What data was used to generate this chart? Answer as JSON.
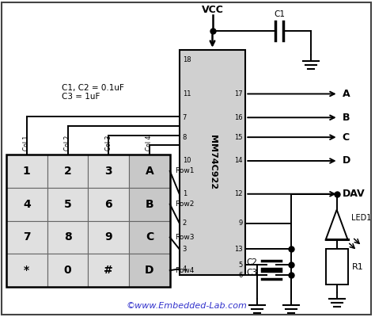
{
  "bg_color": "#ffffff",
  "ic_color": "#d0d0d0",
  "ic_label": "MM74C922",
  "output_labels": [
    "A",
    "B",
    "C",
    "D",
    "DAV"
  ],
  "row_labels": [
    "Row1",
    "Row2",
    "Row3",
    "Row4"
  ],
  "col_labels": [
    "Col 1",
    "Col 2",
    "Col 3",
    "Col 4"
  ],
  "keypad_keys": [
    [
      "1",
      "2",
      "3",
      "A"
    ],
    [
      "4",
      "5",
      "6",
      "B"
    ],
    [
      "7",
      "8",
      "9",
      "C"
    ],
    [
      "*",
      "0",
      "#",
      "D"
    ]
  ],
  "vcc_label": "VCC",
  "c1_label": "C1",
  "c2_label": "C2",
  "c3_label": "C3",
  "r1_label": "R1",
  "led_label": "LED1",
  "note_text": "C1, C2 = 0.1uF\nC3 = 1uF",
  "copyright_text": "©www.Embedded-Lab.com",
  "copyright_color": "#3333cc"
}
